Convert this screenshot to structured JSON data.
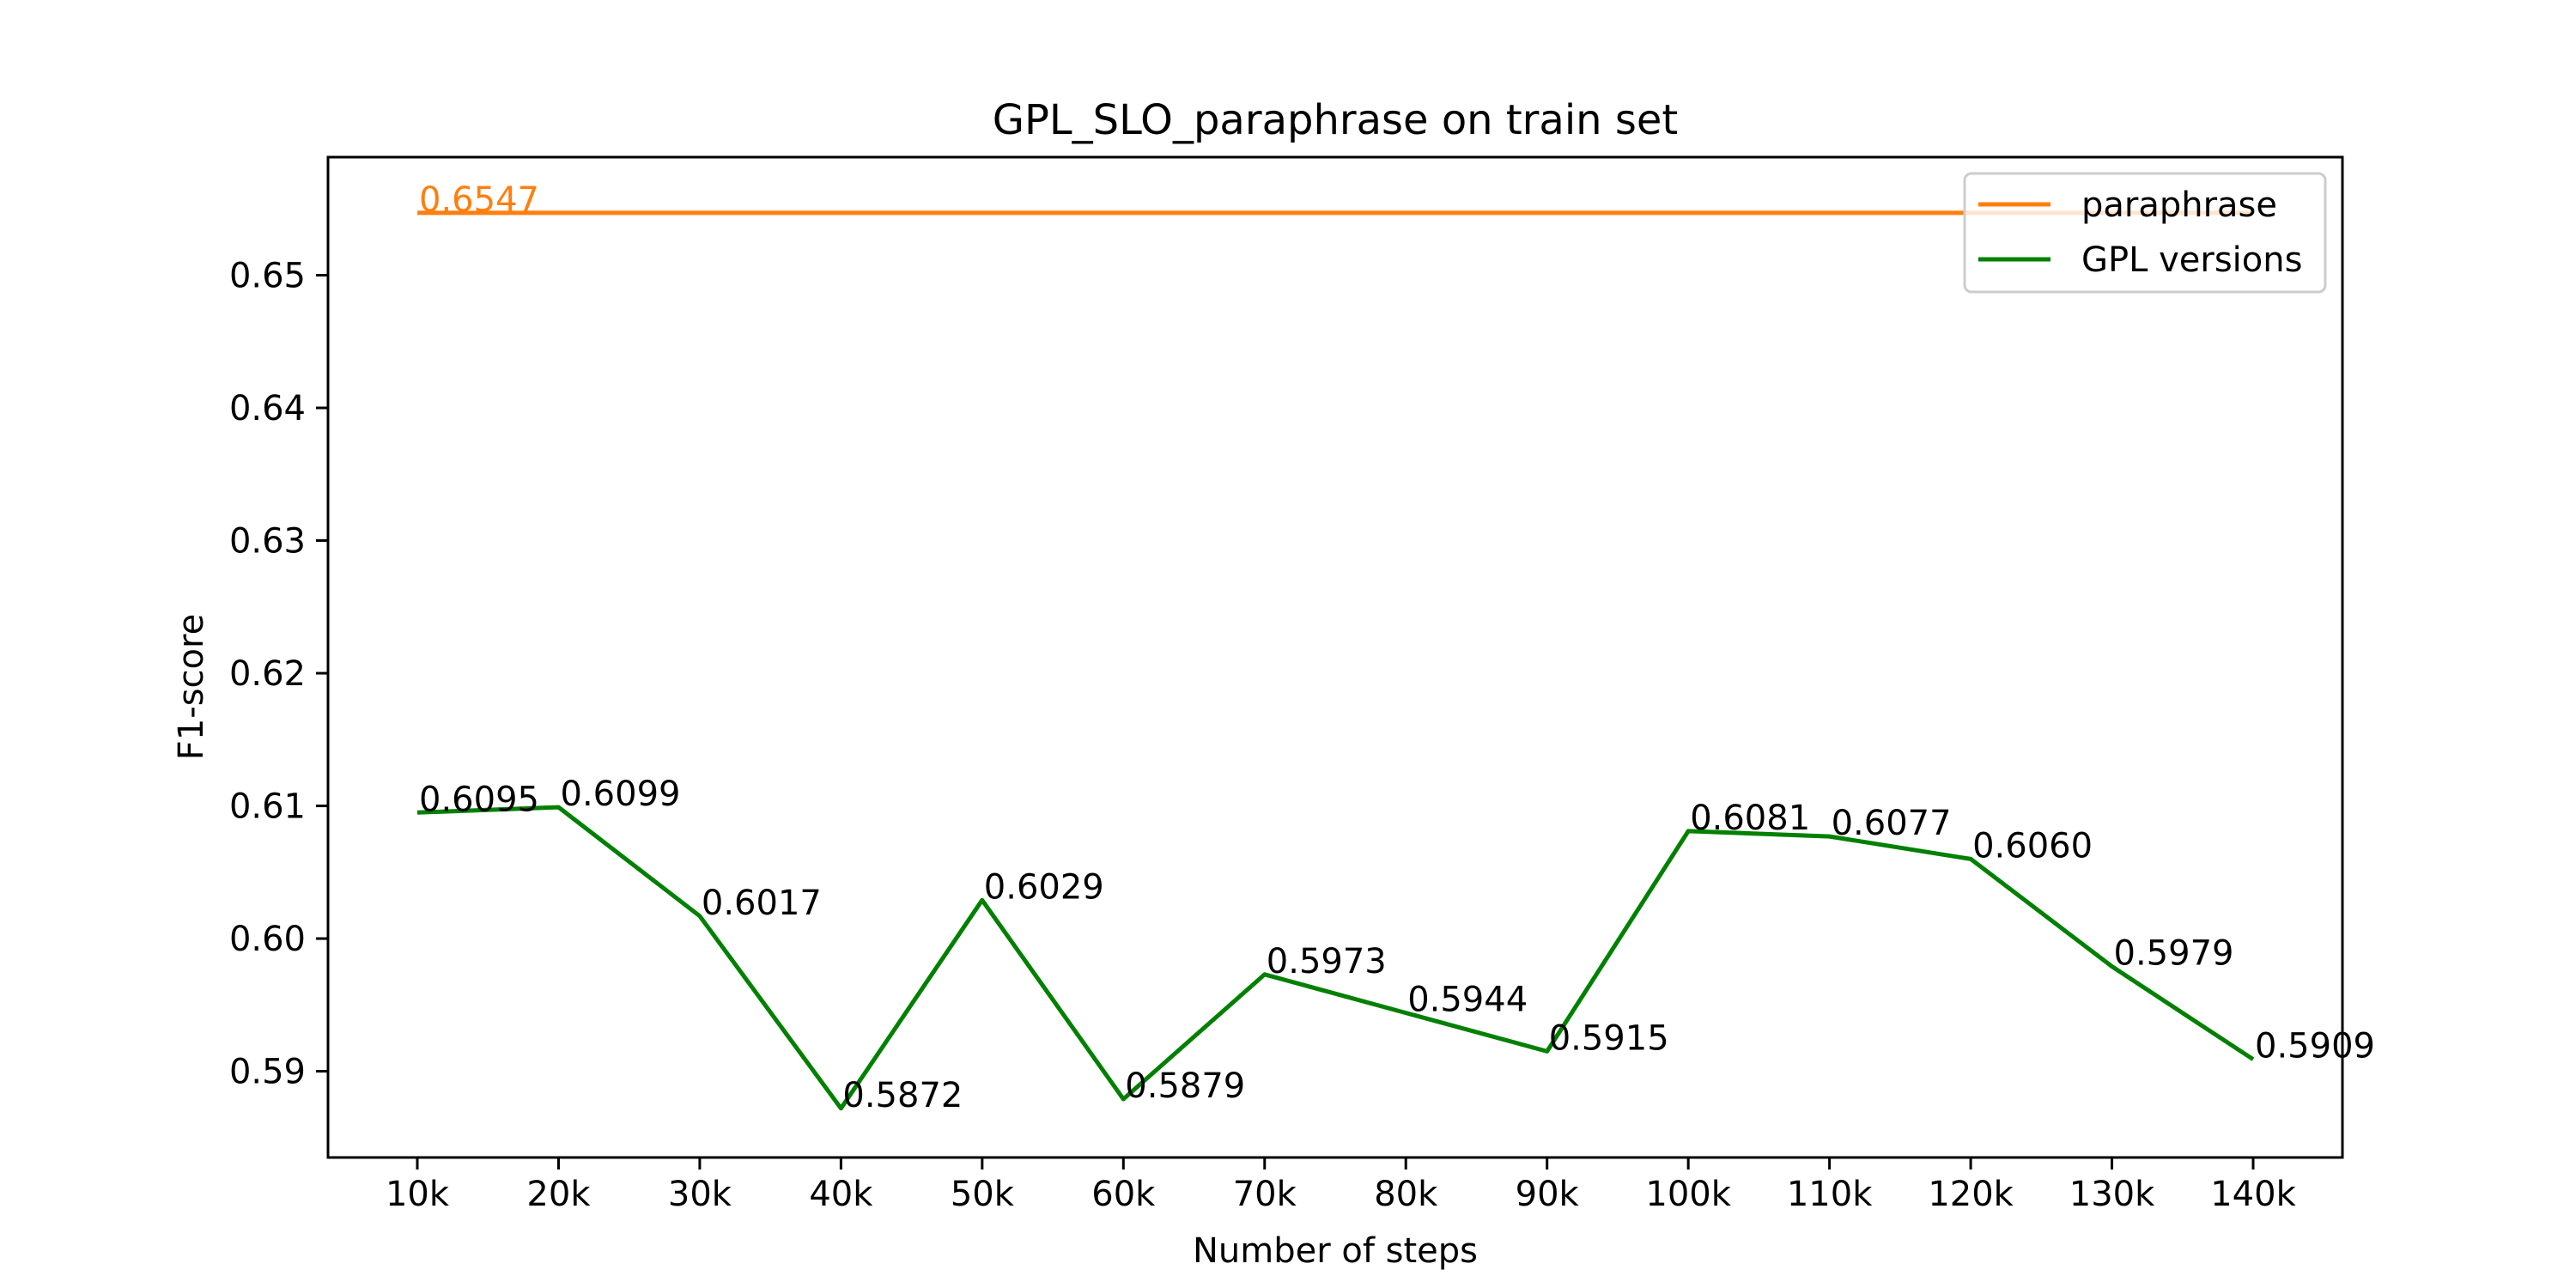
{
  "chart_data": {
    "type": "line",
    "title": "GPL_SLO_paraphrase on train set",
    "xlabel": "Number of steps",
    "ylabel": "F1-score",
    "categories": [
      "10k",
      "20k",
      "30k",
      "40k",
      "50k",
      "60k",
      "70k",
      "80k",
      "90k",
      "100k",
      "110k",
      "120k",
      "130k",
      "140k"
    ],
    "ylim": [
      0.5835,
      0.6589
    ],
    "yticks": [
      0.59,
      0.6,
      0.61,
      0.62,
      0.63,
      0.64,
      0.65
    ],
    "ytick_labels": [
      "0.59",
      "0.60",
      "0.61",
      "0.62",
      "0.63",
      "0.64",
      "0.65"
    ],
    "series": [
      {
        "name": "paraphrase",
        "color": "#ff7f0e",
        "values": [
          0.6547,
          0.6547,
          0.6547,
          0.6547,
          0.6547,
          0.6547,
          0.6547,
          0.6547,
          0.6547,
          0.6547,
          0.6547,
          0.6547,
          0.6547,
          0.6547
        ],
        "labels": [
          {
            "index": 0,
            "text": "0.6547"
          }
        ]
      },
      {
        "name": "GPL versions",
        "color": "#008000",
        "values": [
          0.6095,
          0.6099,
          0.6017,
          0.5872,
          0.6029,
          0.5879,
          0.5973,
          0.5944,
          0.5915,
          0.6081,
          0.6077,
          0.606,
          0.5979,
          0.5909
        ],
        "labels": [
          {
            "index": 0,
            "text": "0.6095"
          },
          {
            "index": 1,
            "text": "0.6099"
          },
          {
            "index": 2,
            "text": "0.6017"
          },
          {
            "index": 3,
            "text": "0.5872"
          },
          {
            "index": 4,
            "text": "0.6029"
          },
          {
            "index": 5,
            "text": "0.5879"
          },
          {
            "index": 6,
            "text": "0.5973"
          },
          {
            "index": 7,
            "text": "0.5944"
          },
          {
            "index": 8,
            "text": "0.5915"
          },
          {
            "index": 9,
            "text": "0.6081"
          },
          {
            "index": 10,
            "text": "0.6077"
          },
          {
            "index": 11,
            "text": "0.6060"
          },
          {
            "index": 12,
            "text": "0.5979"
          },
          {
            "index": 13,
            "text": "0.5909"
          }
        ]
      }
    ],
    "legend": {
      "location": "upper right",
      "entries": [
        "paraphrase",
        "GPL versions"
      ]
    },
    "grid": false
  }
}
